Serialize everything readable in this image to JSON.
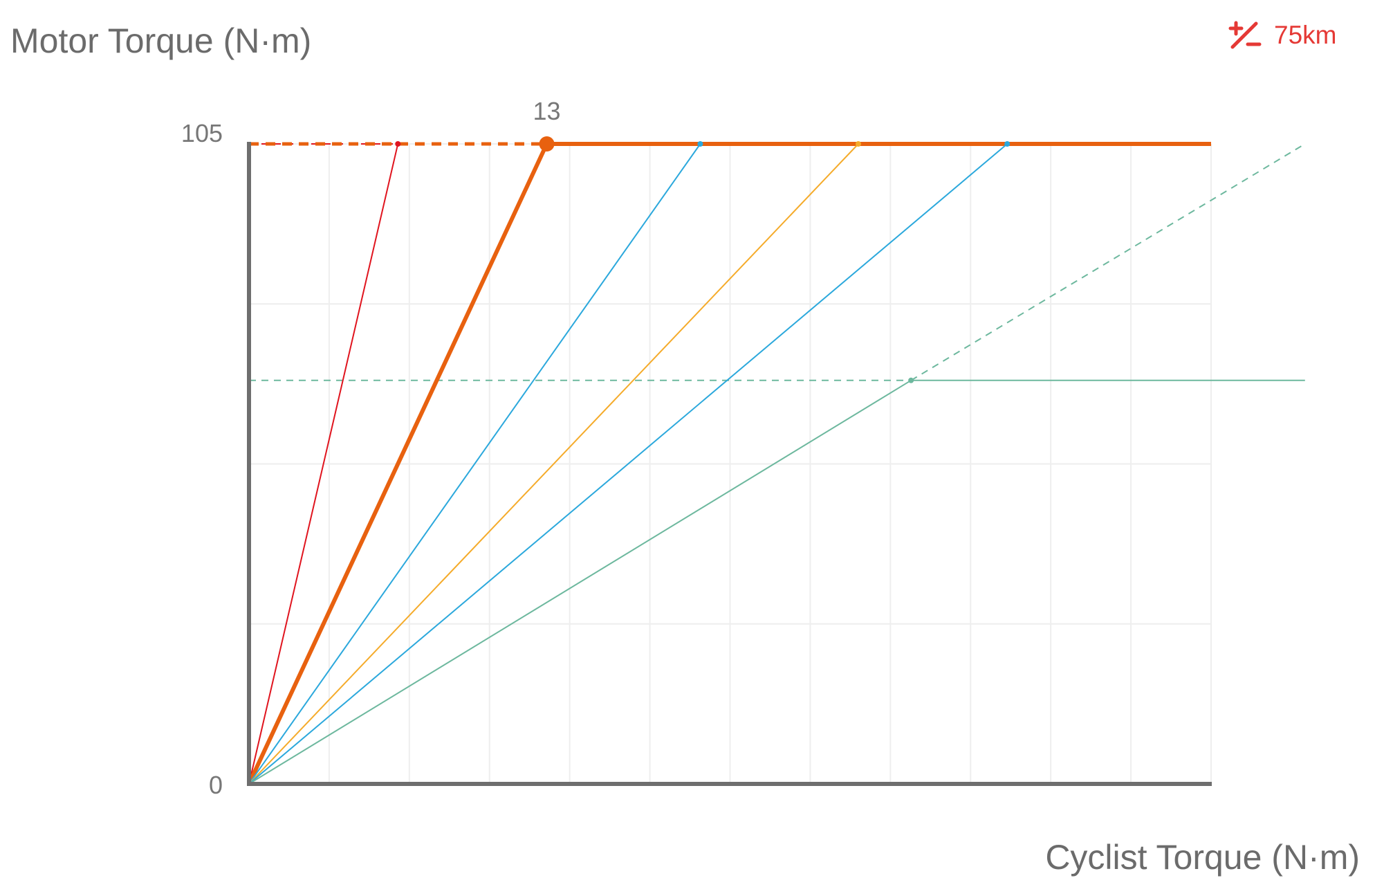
{
  "badge": {
    "icon": "plus-minus-icon",
    "label": "75km",
    "color": "#e53935"
  },
  "chart_data": {
    "type": "line",
    "title": "",
    "ylabel": "Motor Torque (N·m)",
    "xlabel": "Cyclist Torque (N·m)",
    "xlim": [
      0,
      42
    ],
    "ylim": [
      0,
      105
    ],
    "y_tick_labels": [
      "0",
      "105"
    ],
    "x_grid_step": 3.5,
    "y_grid_step": 26.25,
    "grid": true,
    "annotation": {
      "text": "13",
      "x": 13,
      "y": 105
    },
    "series": [
      {
        "name": "red",
        "color": "#e0141e",
        "width": 2,
        "points": [
          [
            0,
            0
          ],
          [
            6.5,
            105
          ]
        ],
        "dashed_guide": [
          [
            0,
            105
          ],
          [
            6.5,
            105
          ]
        ]
      },
      {
        "name": "orange-selected",
        "color": "#e8610f",
        "width": 6,
        "points": [
          [
            0,
            0
          ],
          [
            13,
            105
          ],
          [
            42,
            105
          ]
        ],
        "dashed_guide": [
          [
            0,
            105
          ],
          [
            13,
            105
          ]
        ],
        "highlight_point": [
          13,
          105
        ]
      },
      {
        "name": "blue-1",
        "color": "#2ba8dc",
        "width": 2,
        "points": [
          [
            0,
            0
          ],
          [
            19.7,
            105
          ]
        ]
      },
      {
        "name": "yellow",
        "color": "#f5ab2a",
        "width": 2,
        "points": [
          [
            0,
            0
          ],
          [
            26.6,
            105
          ]
        ]
      },
      {
        "name": "blue-2",
        "color": "#2ba8dc",
        "width": 2,
        "points": [
          [
            0,
            0
          ],
          [
            33.1,
            105
          ]
        ]
      },
      {
        "name": "green",
        "color": "#6db89e",
        "width": 2,
        "points": [
          [
            0,
            0
          ],
          [
            28.9,
            66.2
          ],
          [
            46.1,
            66.2
          ]
        ],
        "dashed_guide": [
          [
            0,
            66.2
          ],
          [
            28.9,
            66.2
          ]
        ],
        "dashed_extension": [
          [
            28.9,
            66.2
          ],
          [
            46.1,
            105
          ]
        ]
      }
    ]
  }
}
